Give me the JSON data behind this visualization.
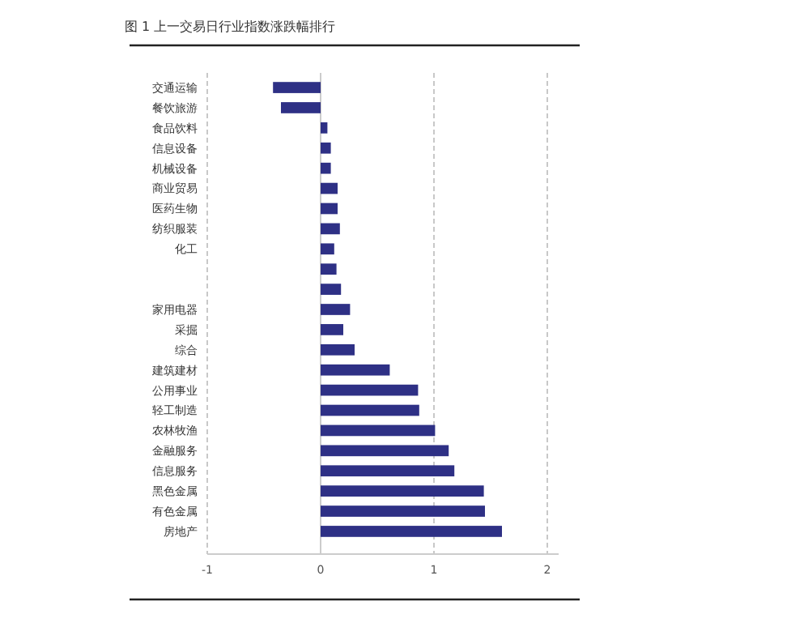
{
  "chart_data": {
    "type": "bar",
    "orientation": "horizontal",
    "title": "图 1 上一交易日行业指数涨跌幅排行",
    "categories": [
      "交通运输",
      "餐饮旅游",
      "食品饮料",
      "信息设备",
      "机械设备",
      "商业贸易",
      "医药生物",
      "纺织服装",
      "化工",
      null,
      null,
      "家用电器",
      "采掘",
      "综合",
      "建筑建材",
      "公用事业",
      "轻工制造",
      "农林牧渔",
      "金融服务",
      "信息服务",
      "黑色金属",
      "有色金属",
      "房地产"
    ],
    "values": [
      -0.42,
      -0.35,
      0.06,
      0.09,
      0.09,
      0.15,
      0.15,
      0.17,
      0.12,
      0.14,
      0.18,
      0.26,
      0.2,
      0.3,
      0.61,
      0.86,
      0.87,
      1.01,
      1.13,
      1.18,
      1.44,
      1.45,
      1.6
    ],
    "color": "#2e3085",
    "xlim": [
      -1,
      2.1
    ],
    "xticks": [
      -1,
      0,
      1,
      2
    ],
    "grid": "x"
  }
}
